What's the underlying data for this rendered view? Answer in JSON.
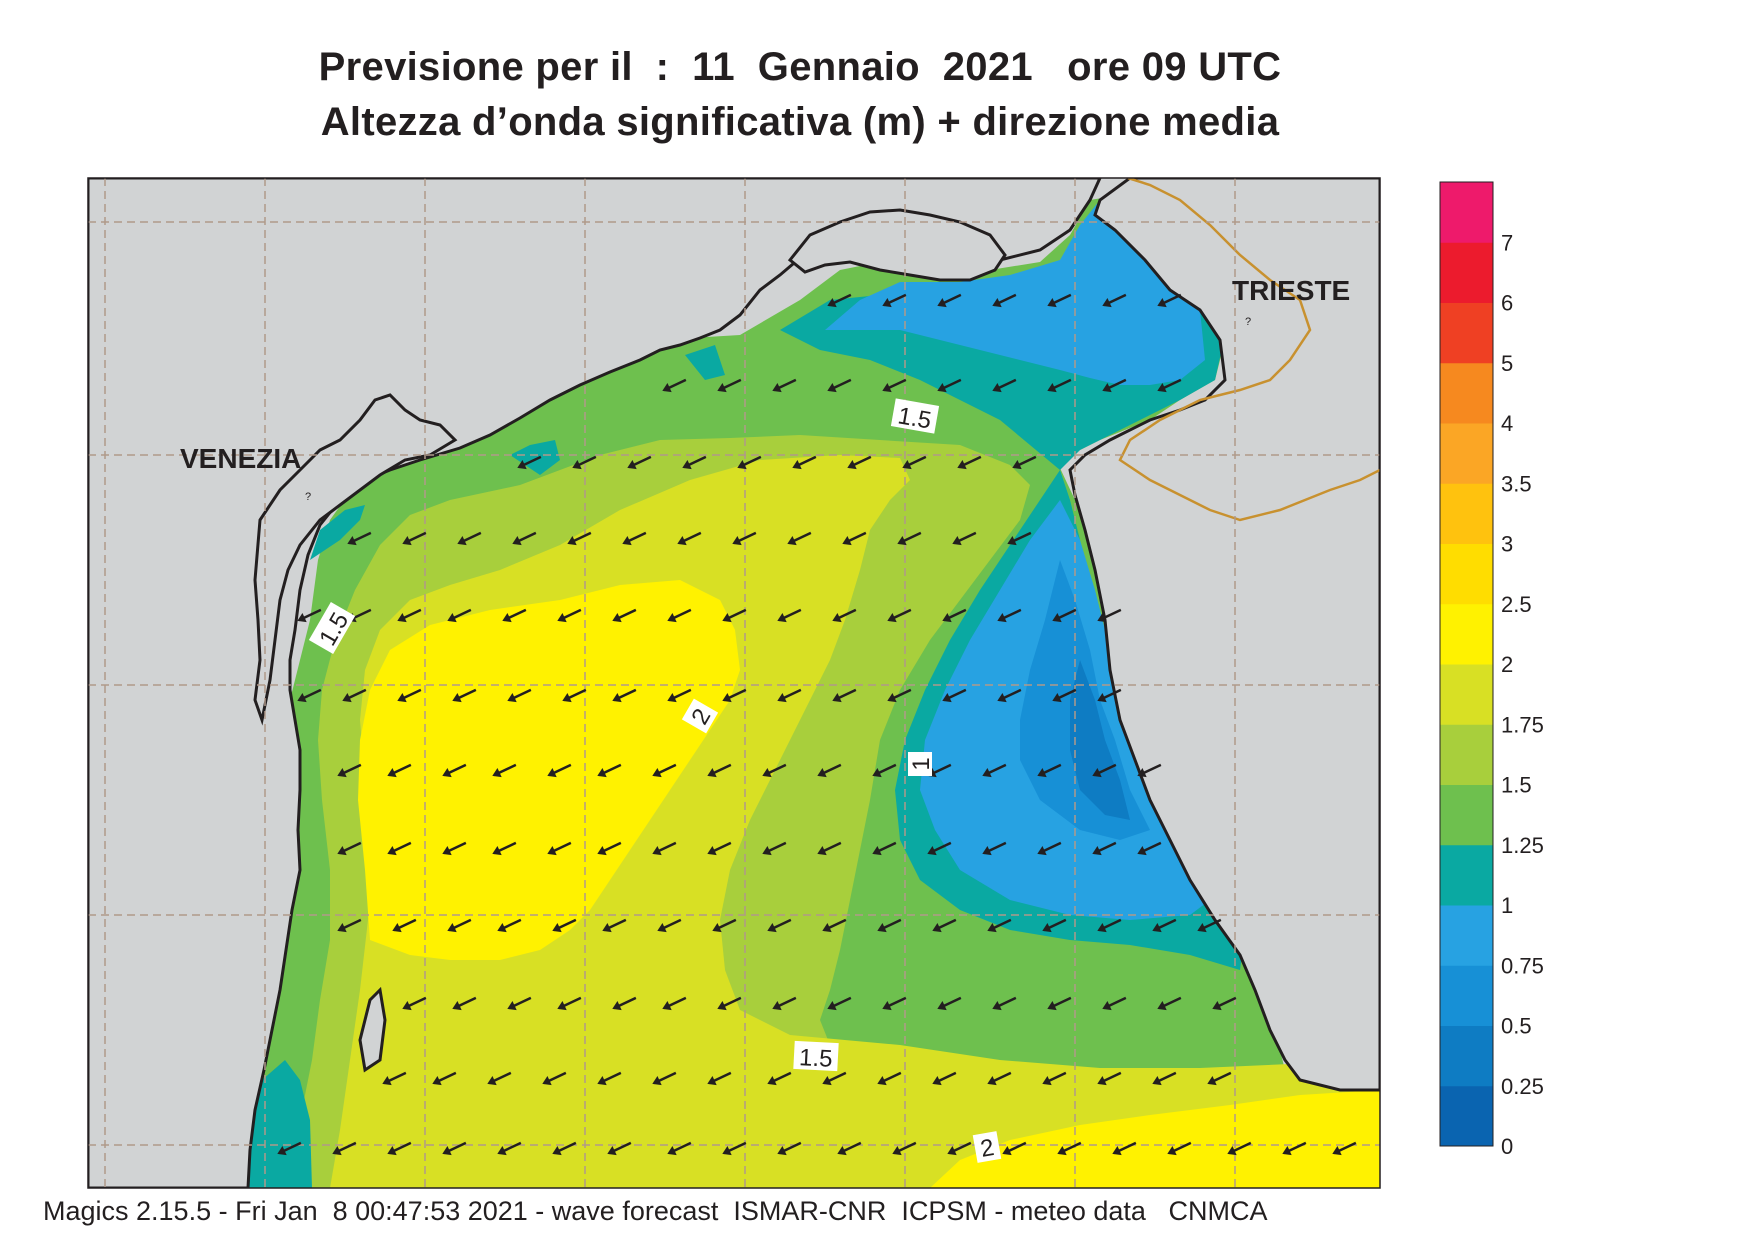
{
  "title_line1": "Previsione per il  :  11  Gennaio  2021   ore 09 UTC",
  "title_line2": "Altezza d’onda significativa (m) + direzione media",
  "cities": [
    {
      "name": "VENEZIA",
      "marker": "?"
    },
    {
      "name": "TRIESTE",
      "marker": "?"
    }
  ],
  "contour_labels": [
    "1.5",
    "1.5",
    "2",
    "1",
    "1.5",
    "2"
  ],
  "legend": {
    "ticks": [
      "0",
      "0.25",
      "0.5",
      "0.75",
      "1",
      "1.25",
      "1.5",
      "1.75",
      "2",
      "2.5",
      "3",
      "3.5",
      "4",
      "5",
      "6",
      "7"
    ],
    "colors": [
      "#0a64b0",
      "#0e7cc3",
      "#1790d6",
      "#27a2e2",
      "#0aa9a2",
      "#6ec04e",
      "#a8cf3c",
      "#d8e024",
      "#fff200",
      "#ffdd00",
      "#ffc20e",
      "#fba625",
      "#f6891f",
      "#ef4023",
      "#ec1b2d",
      "#ee1a6b"
    ]
  },
  "arrow_direction": "southwest",
  "map_colors": {
    "land": "#d1d3d4",
    "coastline": "#231f20",
    "border": "#c8912f"
  },
  "footer": "Magics 2.15.5 - Fri Jan  8 00:47:53 2021 - wave forecast  ISMAR-CNR  ICPSM - meteo data   CNMCA"
}
